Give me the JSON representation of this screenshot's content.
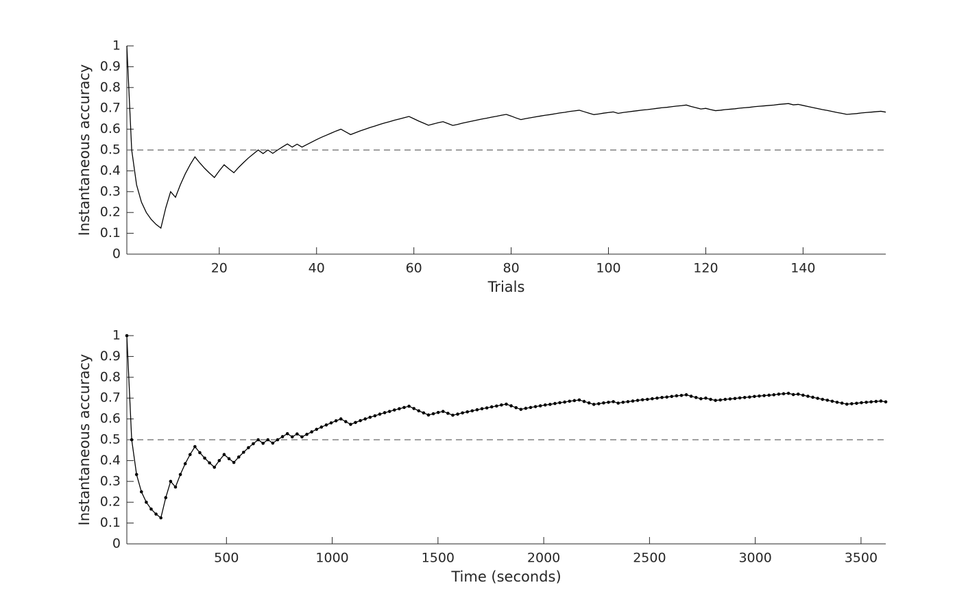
{
  "chart_data": [
    {
      "type": "line",
      "xlabel": "Trials",
      "ylabel": "Instantaneous accuracy",
      "color": "#000000",
      "marker": false,
      "reference_line": 0.5,
      "reference_color": "#666666",
      "xlim": [
        1,
        157
      ],
      "xticks": [
        20,
        40,
        60,
        80,
        100,
        120,
        140
      ],
      "ylim": [
        0,
        1
      ],
      "yticks": [
        0,
        0.1,
        0.2,
        0.3,
        0.4,
        0.5,
        0.6,
        0.7,
        0.8,
        0.9,
        1
      ],
      "x": [
        1,
        2,
        3,
        4,
        5,
        6,
        7,
        8,
        9,
        10,
        11,
        12,
        13,
        14,
        15,
        16,
        17,
        18,
        19,
        20,
        21,
        22,
        23,
        24,
        25,
        26,
        27,
        28,
        29,
        30,
        31,
        32,
        33,
        34,
        35,
        36,
        37,
        38,
        39,
        40,
        41,
        42,
        43,
        44,
        45,
        46,
        47,
        48,
        49,
        50,
        51,
        52,
        53,
        54,
        55,
        56,
        57,
        58,
        59,
        60,
        61,
        62,
        63,
        64,
        65,
        66,
        67,
        68,
        69,
        70,
        71,
        72,
        73,
        74,
        75,
        76,
        77,
        78,
        79,
        80,
        81,
        82,
        83,
        84,
        85,
        86,
        87,
        88,
        89,
        90,
        91,
        92,
        93,
        94,
        95,
        96,
        97,
        98,
        99,
        100,
        101,
        102,
        103,
        104,
        105,
        106,
        107,
        108,
        109,
        110,
        111,
        112,
        113,
        114,
        115,
        116,
        117,
        118,
        119,
        120,
        121,
        122,
        123,
        124,
        125,
        126,
        127,
        128,
        129,
        130,
        131,
        132,
        133,
        134,
        135,
        136,
        137,
        138,
        139,
        140,
        141,
        142,
        143,
        144,
        145,
        146,
        147,
        148,
        149,
        150,
        151,
        152,
        153,
        154,
        155,
        156,
        157
      ],
      "values": [
        1,
        0.5,
        0.333,
        0.25,
        0.2,
        0.167,
        0.143,
        0.125,
        0.222,
        0.3,
        0.273,
        0.333,
        0.385,
        0.429,
        0.467,
        0.438,
        0.412,
        0.389,
        0.368,
        0.4,
        0.429,
        0.409,
        0.391,
        0.417,
        0.44,
        0.462,
        0.481,
        0.5,
        0.483,
        0.5,
        0.484,
        0.5,
        0.515,
        0.529,
        0.514,
        0.528,
        0.514,
        0.526,
        0.538,
        0.55,
        0.561,
        0.571,
        0.581,
        0.591,
        0.6,
        0.587,
        0.574,
        0.583,
        0.592,
        0.6,
        0.608,
        0.615,
        0.623,
        0.63,
        0.636,
        0.643,
        0.649,
        0.655,
        0.661,
        0.65,
        0.639,
        0.629,
        0.619,
        0.625,
        0.631,
        0.636,
        0.627,
        0.618,
        0.623,
        0.629,
        0.634,
        0.639,
        0.644,
        0.649,
        0.653,
        0.658,
        0.662,
        0.667,
        0.671,
        0.663,
        0.654,
        0.646,
        0.651,
        0.655,
        0.659,
        0.663,
        0.667,
        0.67,
        0.674,
        0.678,
        0.681,
        0.685,
        0.688,
        0.691,
        0.684,
        0.677,
        0.67,
        0.673,
        0.677,
        0.68,
        0.683,
        0.676,
        0.68,
        0.683,
        0.686,
        0.689,
        0.692,
        0.694,
        0.697,
        0.7,
        0.703,
        0.705,
        0.708,
        0.711,
        0.713,
        0.716,
        0.709,
        0.703,
        0.697,
        0.7,
        0.694,
        0.689,
        0.691,
        0.694,
        0.696,
        0.698,
        0.701,
        0.703,
        0.705,
        0.708,
        0.71,
        0.712,
        0.714,
        0.716,
        0.719,
        0.721,
        0.723,
        0.717,
        0.719,
        0.714,
        0.709,
        0.704,
        0.699,
        0.694,
        0.69,
        0.685,
        0.68,
        0.676,
        0.671,
        0.673,
        0.675,
        0.678,
        0.68,
        0.682,
        0.684,
        0.686,
        0.682
      ]
    },
    {
      "type": "line",
      "xlabel": "Time (seconds)",
      "ylabel": "Instantaneous accuracy",
      "color": "#000000",
      "marker": true,
      "reference_line": 0.5,
      "reference_color": "#666666",
      "xlim": [
        29,
        3617
      ],
      "xticks": [
        500,
        1000,
        1500,
        2000,
        2500,
        3000,
        3500
      ],
      "ylim": [
        0,
        1
      ],
      "yticks": [
        0,
        0.1,
        0.2,
        0.3,
        0.4,
        0.5,
        0.6,
        0.7,
        0.8,
        0.9,
        1
      ],
      "x": [
        29,
        52,
        75,
        98,
        121,
        144,
        167,
        190,
        213,
        236,
        259,
        282,
        305,
        328,
        351,
        374,
        397,
        420,
        443,
        466,
        489,
        512,
        535,
        558,
        581,
        604,
        627,
        650,
        673,
        696,
        719,
        742,
        765,
        788,
        811,
        834,
        857,
        880,
        903,
        926,
        949,
        972,
        995,
        1018,
        1041,
        1064,
        1087,
        1110,
        1133,
        1156,
        1179,
        1202,
        1225,
        1248,
        1271,
        1294,
        1317,
        1340,
        1363,
        1386,
        1409,
        1432,
        1455,
        1478,
        1501,
        1524,
        1547,
        1570,
        1593,
        1616,
        1639,
        1662,
        1685,
        1708,
        1731,
        1754,
        1777,
        1800,
        1823,
        1846,
        1869,
        1892,
        1915,
        1938,
        1961,
        1984,
        2007,
        2030,
        2053,
        2076,
        2099,
        2122,
        2145,
        2168,
        2191,
        2214,
        2237,
        2260,
        2283,
        2306,
        2329,
        2352,
        2375,
        2398,
        2421,
        2444,
        2467,
        2490,
        2513,
        2536,
        2559,
        2582,
        2605,
        2628,
        2651,
        2674,
        2697,
        2720,
        2743,
        2766,
        2789,
        2812,
        2835,
        2858,
        2881,
        2904,
        2927,
        2950,
        2973,
        2996,
        3019,
        3042,
        3065,
        3088,
        3111,
        3134,
        3157,
        3180,
        3203,
        3226,
        3249,
        3272,
        3295,
        3318,
        3341,
        3364,
        3387,
        3410,
        3433,
        3456,
        3479,
        3502,
        3525,
        3548,
        3571,
        3594,
        3617
      ],
      "values": [
        1,
        0.5,
        0.333,
        0.25,
        0.2,
        0.167,
        0.143,
        0.125,
        0.222,
        0.3,
        0.273,
        0.333,
        0.385,
        0.429,
        0.467,
        0.438,
        0.412,
        0.389,
        0.368,
        0.4,
        0.429,
        0.409,
        0.391,
        0.417,
        0.44,
        0.462,
        0.481,
        0.5,
        0.483,
        0.5,
        0.484,
        0.5,
        0.515,
        0.529,
        0.514,
        0.528,
        0.514,
        0.526,
        0.538,
        0.55,
        0.561,
        0.571,
        0.581,
        0.591,
        0.6,
        0.587,
        0.574,
        0.583,
        0.592,
        0.6,
        0.608,
        0.615,
        0.623,
        0.63,
        0.636,
        0.643,
        0.649,
        0.655,
        0.661,
        0.65,
        0.639,
        0.629,
        0.619,
        0.625,
        0.631,
        0.636,
        0.627,
        0.618,
        0.623,
        0.629,
        0.634,
        0.639,
        0.644,
        0.649,
        0.653,
        0.658,
        0.662,
        0.667,
        0.671,
        0.663,
        0.654,
        0.646,
        0.651,
        0.655,
        0.659,
        0.663,
        0.667,
        0.67,
        0.674,
        0.678,
        0.681,
        0.685,
        0.688,
        0.691,
        0.684,
        0.677,
        0.67,
        0.673,
        0.677,
        0.68,
        0.683,
        0.676,
        0.68,
        0.683,
        0.686,
        0.689,
        0.692,
        0.694,
        0.697,
        0.7,
        0.703,
        0.705,
        0.708,
        0.711,
        0.713,
        0.716,
        0.709,
        0.703,
        0.697,
        0.7,
        0.694,
        0.689,
        0.691,
        0.694,
        0.696,
        0.698,
        0.701,
        0.703,
        0.705,
        0.708,
        0.71,
        0.712,
        0.714,
        0.716,
        0.719,
        0.721,
        0.723,
        0.717,
        0.719,
        0.714,
        0.709,
        0.704,
        0.699,
        0.694,
        0.69,
        0.685,
        0.68,
        0.676,
        0.671,
        0.673,
        0.675,
        0.678,
        0.68,
        0.682,
        0.684,
        0.686,
        0.682
      ]
    }
  ]
}
